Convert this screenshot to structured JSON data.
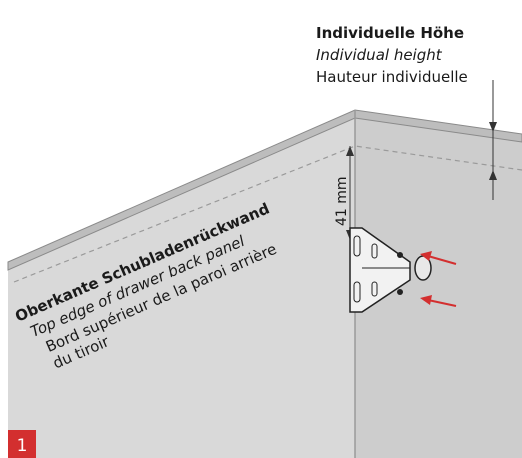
{
  "height_label": {
    "de": "Individuelle Höhe",
    "en": "Individual height",
    "fr": "Hauteur individuelle"
  },
  "dimension": "41 mm",
  "edge_label": {
    "de": "Oberkante Schubladenrückwand",
    "en": "Top edge of drawer back panel",
    "fr_line1": "Bord supérieur de la paroi arrière",
    "fr_line2": "du tiroir"
  },
  "step": "1"
}
